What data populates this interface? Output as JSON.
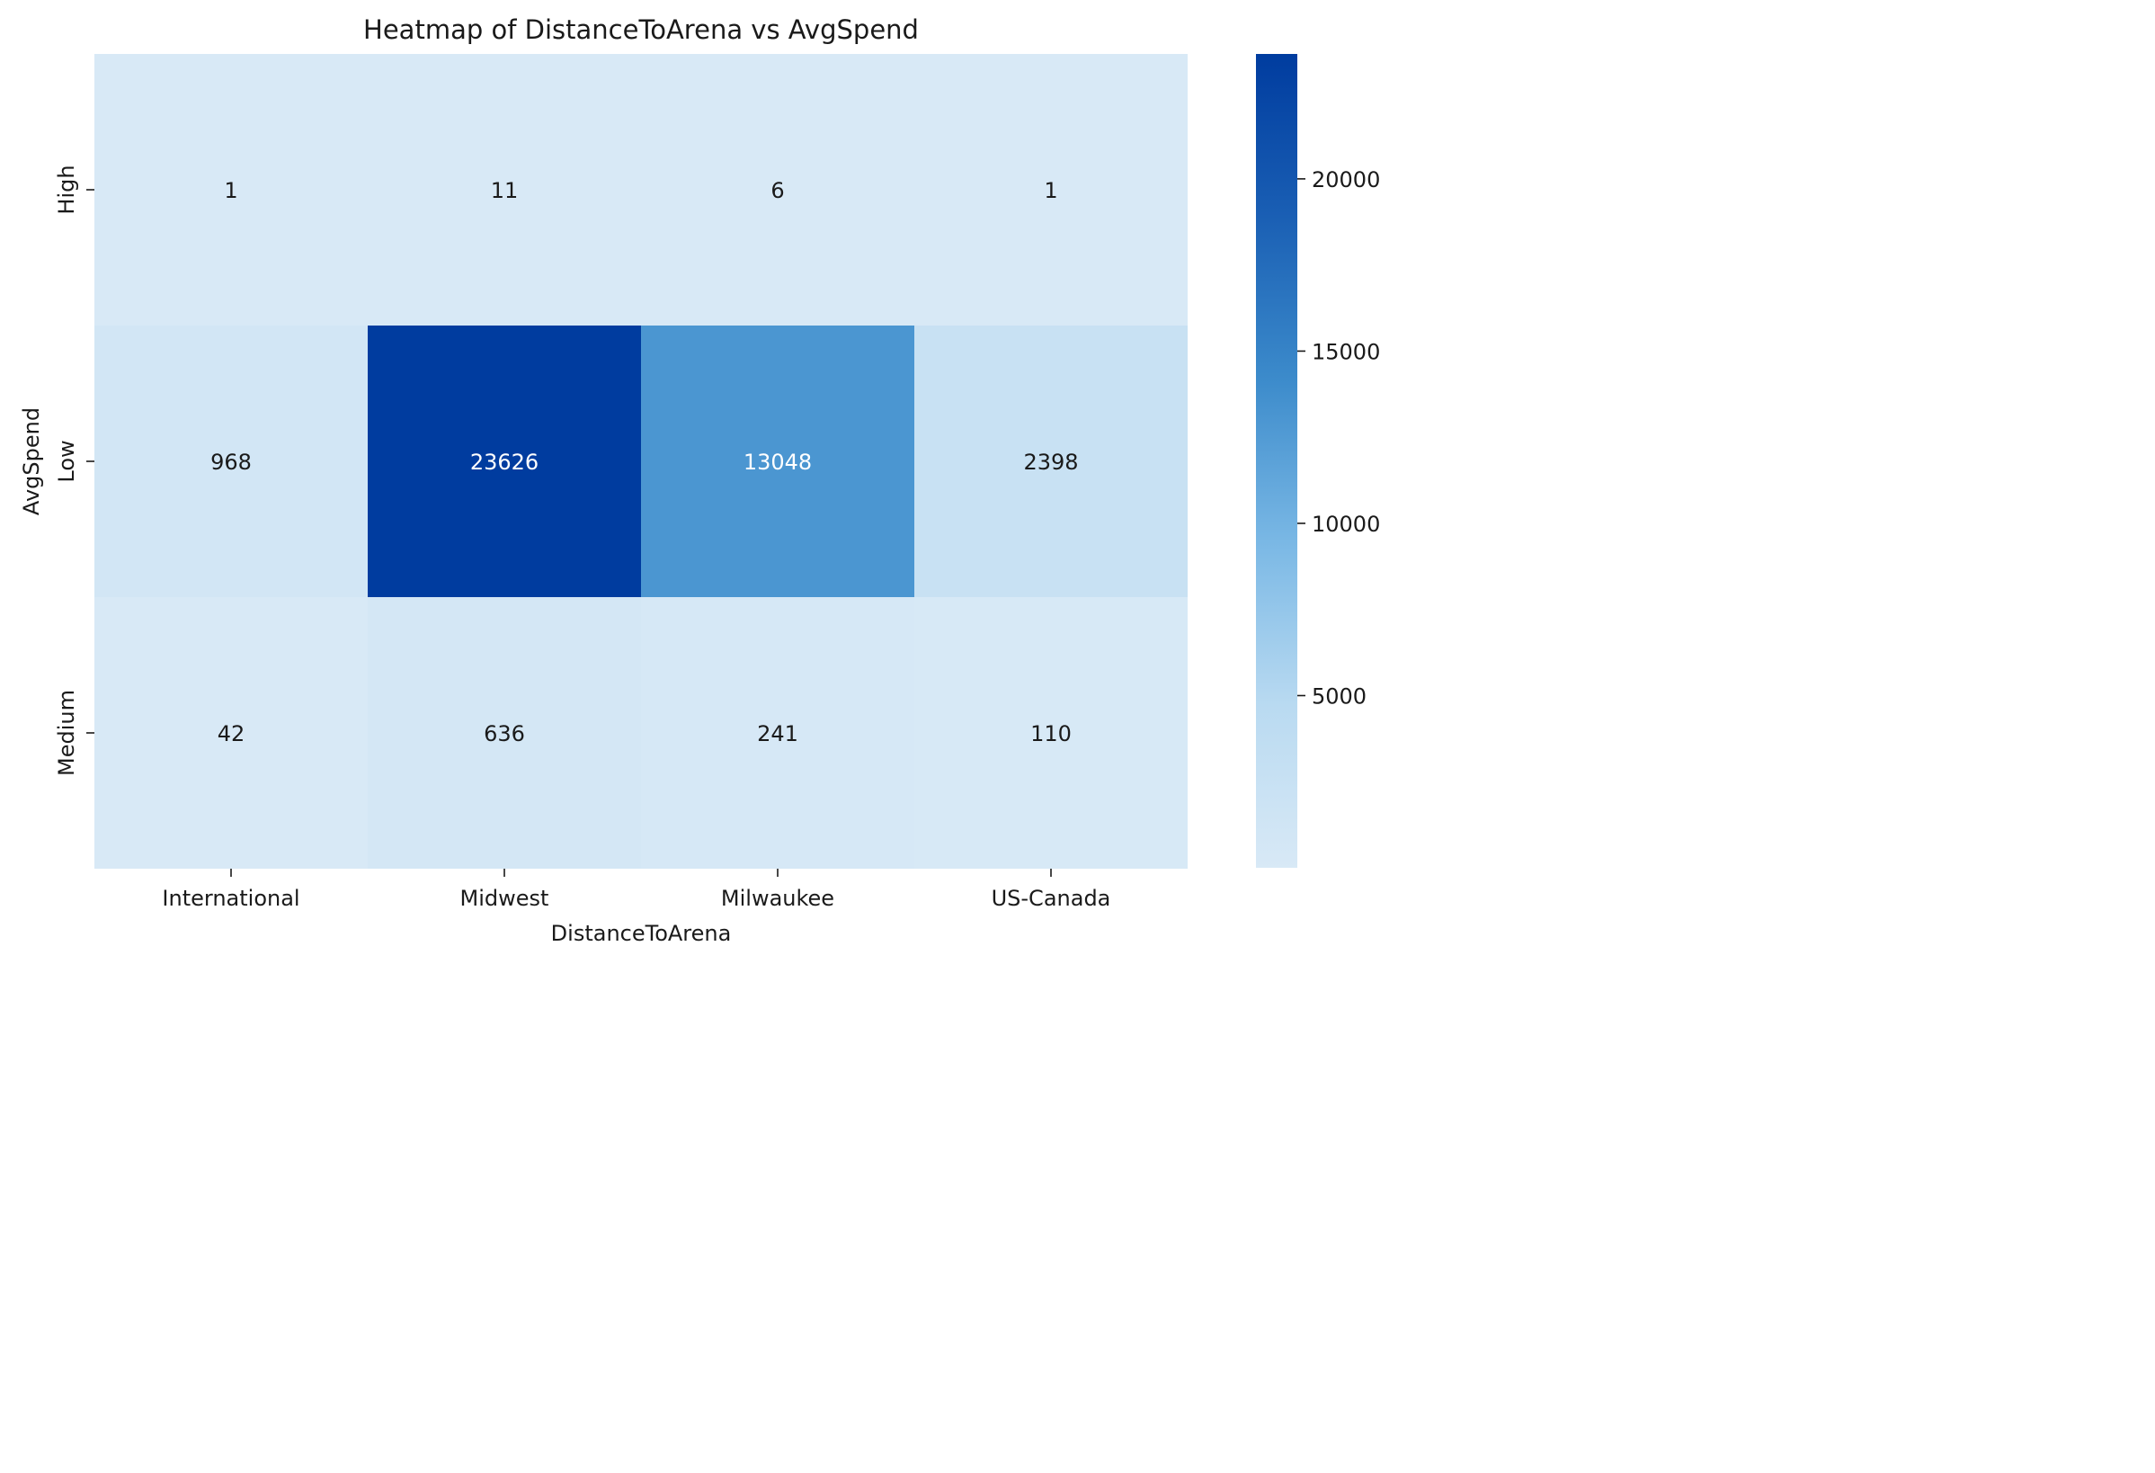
{
  "chart_data": {
    "type": "heatmap",
    "title": "Heatmap of DistanceToArena vs AvgSpend",
    "xlabel": "DistanceToArena",
    "ylabel": "AvgSpend",
    "x_categories": [
      "International",
      "Midwest",
      "Milwaukee",
      "US-Canada"
    ],
    "y_categories": [
      "High",
      "Low",
      "Medium"
    ],
    "values": [
      [
        1,
        11,
        6,
        1
      ],
      [
        968,
        23626,
        13048,
        2398
      ],
      [
        42,
        636,
        241,
        110
      ]
    ],
    "colorbar": {
      "ticks": [
        5000,
        10000,
        15000,
        20000
      ],
      "tick_labels": [
        "5000",
        "10000",
        "15000",
        "20000"
      ],
      "range": [
        1,
        23626
      ],
      "colors": [
        "#d8e9f6",
        "#003c9f"
      ]
    },
    "colormap": "Blues",
    "grid": false
  }
}
